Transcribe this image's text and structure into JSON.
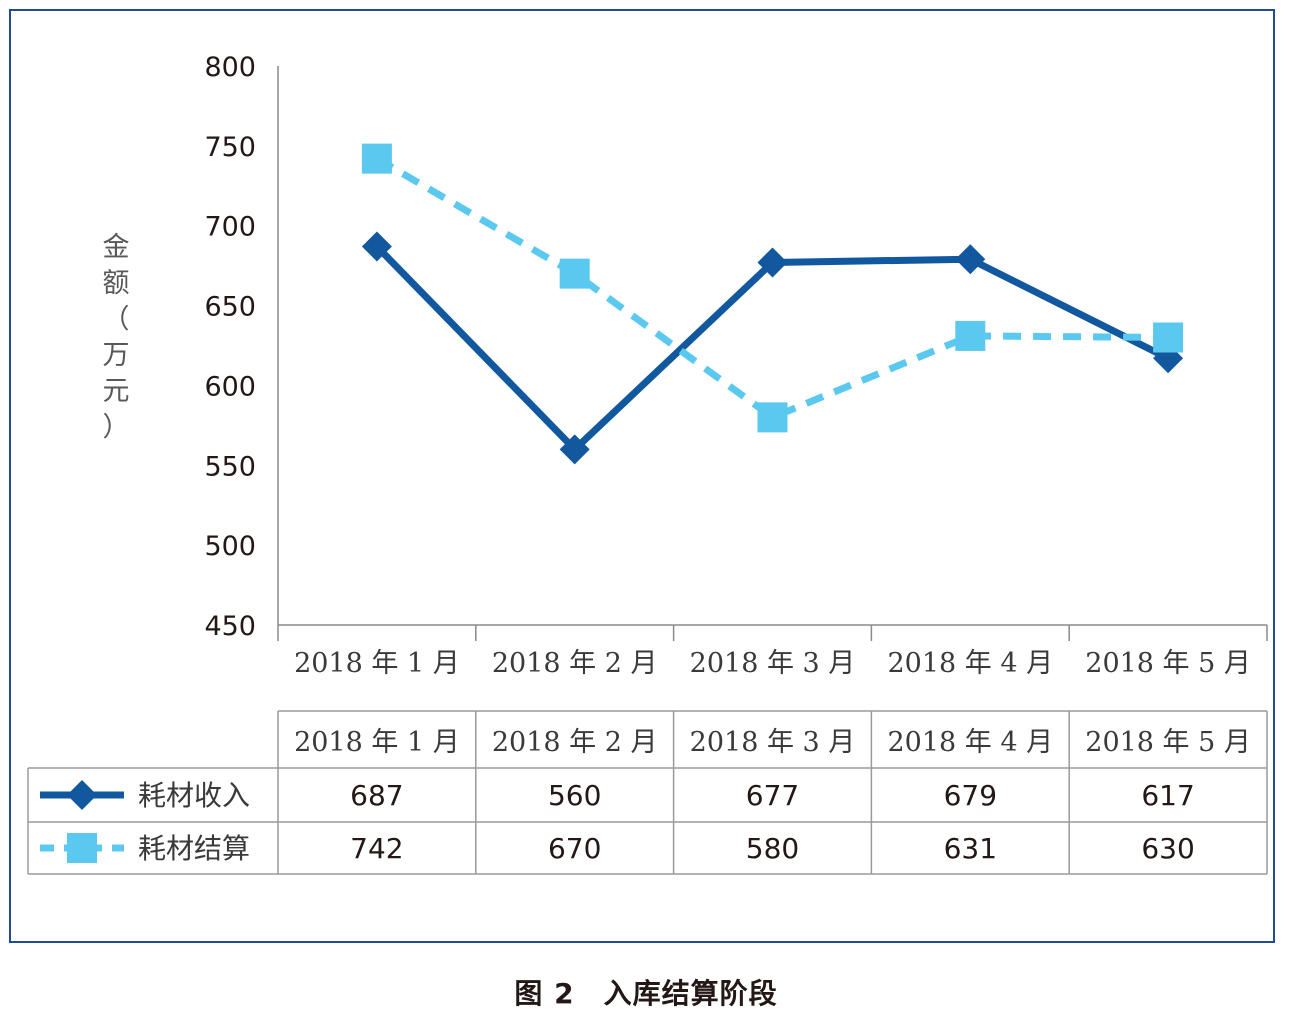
{
  "chart_data": {
    "type": "line",
    "ylabel": "金额（万元）",
    "ylim": [
      450,
      800
    ],
    "yticks": [
      800,
      750,
      700,
      650,
      600,
      550,
      500,
      450
    ],
    "categories": [
      "2018 年 1 月",
      "2018 年 2 月",
      "2018 年 3 月",
      "2018 年 4 月",
      "2018 年 5 月"
    ],
    "series": [
      {
        "name": "耗材收入",
        "values": [
          687,
          560,
          677,
          679,
          617
        ],
        "color": "#11589e",
        "style": "solid",
        "marker": "diamond"
      },
      {
        "name": "耗材结算",
        "values": [
          742,
          670,
          580,
          631,
          630
        ],
        "color": "#5bc8f0",
        "style": "dashed",
        "marker": "square"
      }
    ],
    "grid": false,
    "legend": "data table below chart"
  },
  "caption": "图 2　入库结算阶段"
}
